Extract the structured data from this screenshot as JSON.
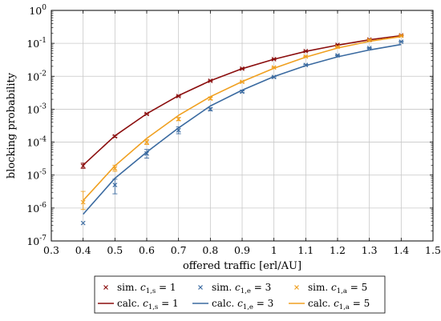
{
  "chart_data": {
    "type": "line",
    "xlabel": "offered traffic [erl/AU]",
    "ylabel": "blocking probability",
    "xlim": [
      0.3,
      1.5
    ],
    "ylim": [
      1e-07,
      1
    ],
    "y_scale": "log",
    "grid": true,
    "legend_placement": "bottom-center",
    "x_ticks": [
      "0.3",
      "0.4",
      "0.5",
      "0.6",
      "0.7",
      "0.8",
      "0.9",
      "1",
      "1.1",
      "1.2",
      "1.3",
      "1.4",
      "1.5"
    ],
    "y_ticks": [
      {
        "base": "10",
        "exp": "0",
        "value": 1
      },
      {
        "base": "10",
        "exp": "-1",
        "value": 0.1
      },
      {
        "base": "10",
        "exp": "-2",
        "value": 0.01
      },
      {
        "base": "10",
        "exp": "-3",
        "value": 0.001
      },
      {
        "base": "10",
        "exp": "-4",
        "value": 0.0001
      },
      {
        "base": "10",
        "exp": "-5",
        "value": 1e-05
      },
      {
        "base": "10",
        "exp": "-6",
        "value": 1e-06
      },
      {
        "base": "10",
        "exp": "-7",
        "value": 1e-07
      }
    ],
    "series": [
      {
        "kind": "simulation",
        "color": "#8b0e0e",
        "marker": "x",
        "legend": {
          "prefix": "sim.",
          "sym": "c",
          "sub": "1,s",
          "eq": "= 1"
        },
        "x": [
          0.4,
          0.5,
          0.6,
          0.7,
          0.8,
          0.9,
          1.0,
          1.1,
          1.2,
          1.3,
          1.4
        ],
        "y": [
          1.9e-05,
          0.00015,
          0.00072,
          0.0025,
          0.0073,
          0.017,
          0.033,
          0.058,
          0.09,
          0.13,
          0.175
        ],
        "err_low": [
          1.6e-05,
          0.00014,
          0.00069,
          0.0024,
          0.007,
          0.0165,
          0.032,
          0.056,
          0.088,
          0.127,
          0.17
        ],
        "err_high": [
          2.3e-05,
          0.00016,
          0.00075,
          0.0026,
          0.0076,
          0.0175,
          0.034,
          0.06,
          0.092,
          0.133,
          0.18
        ]
      },
      {
        "kind": "simulation",
        "color": "#3a6aa0",
        "marker": "x",
        "legend": {
          "prefix": "sim.",
          "sym": "c",
          "sub": "1,e",
          "eq": "= 3"
        },
        "x": [
          0.4,
          0.5,
          0.6,
          0.7,
          0.8,
          0.9,
          1.0,
          1.1,
          1.2,
          1.3,
          1.4
        ],
        "y": [
          3.5e-07,
          5e-06,
          4.5e-05,
          0.00023,
          0.001,
          0.0034,
          0.0095,
          0.022,
          0.043,
          0.072,
          0.112
        ],
        "err_low": [
          null,
          2.7e-06,
          3.3e-05,
          0.00018,
          0.0009,
          0.0032,
          0.0091,
          0.021,
          0.042,
          0.07,
          0.108
        ],
        "err_high": [
          null,
          7.5e-06,
          6e-05,
          0.00029,
          0.0011,
          0.0036,
          0.0099,
          0.023,
          0.044,
          0.074,
          0.116
        ]
      },
      {
        "kind": "simulation",
        "color": "#f0a020",
        "marker": "x",
        "legend": {
          "prefix": "sim.",
          "sym": "c",
          "sub": "1,a",
          "eq": "= 5"
        },
        "x": [
          0.4,
          0.5,
          0.6,
          0.7,
          0.8,
          0.9,
          1.0,
          1.1,
          1.2,
          1.3,
          1.4
        ],
        "y": [
          1.5e-06,
          1.6e-05,
          0.0001,
          0.0005,
          0.0021,
          0.0068,
          0.0185,
          0.04,
          0.078,
          0.125,
          0.17
        ],
        "err_low": [
          9e-07,
          1.3e-05,
          8.5e-05,
          0.00045,
          0.00195,
          0.0065,
          0.018,
          0.039,
          0.076,
          0.122,
          0.165
        ],
        "err_high": [
          3.2e-06,
          2e-05,
          0.00012,
          0.00056,
          0.0023,
          0.0071,
          0.019,
          0.041,
          0.08,
          0.128,
          0.175
        ]
      },
      {
        "kind": "calculation",
        "color": "#8b0e0e",
        "marker": "line",
        "legend": {
          "prefix": "calc.",
          "sym": "c",
          "sub": "1,s",
          "eq": "= 1"
        },
        "x": [
          0.4,
          0.5,
          0.6,
          0.7,
          0.8,
          0.9,
          1.0,
          1.1,
          1.2,
          1.3,
          1.4
        ],
        "y": [
          2e-05,
          0.000155,
          0.00073,
          0.0026,
          0.0073,
          0.017,
          0.033,
          0.057,
          0.088,
          0.128,
          0.172
        ]
      },
      {
        "kind": "calculation",
        "color": "#3a6aa0",
        "marker": "line",
        "legend": {
          "prefix": "calc.",
          "sym": "c",
          "sub": "1,e",
          "eq": "= 3"
        },
        "x": [
          0.4,
          0.5,
          0.6,
          0.7,
          0.8,
          0.9,
          1.0,
          1.1,
          1.2,
          1.3,
          1.4
        ],
        "y": [
          6.5e-07,
          8e-06,
          5e-05,
          0.00027,
          0.00125,
          0.0038,
          0.0098,
          0.021,
          0.039,
          0.063,
          0.092
        ]
      },
      {
        "kind": "calculation",
        "color": "#f0a020",
        "marker": "line",
        "legend": {
          "prefix": "calc.",
          "sym": "c",
          "sub": "1,a",
          "eq": "= 5"
        },
        "x": [
          0.4,
          0.5,
          0.6,
          0.7,
          0.8,
          0.9,
          1.0,
          1.1,
          1.2,
          1.3,
          1.4
        ],
        "y": [
          1.7e-06,
          1.9e-05,
          0.00013,
          0.00065,
          0.0024,
          0.0069,
          0.0175,
          0.038,
          0.072,
          0.115,
          0.16
        ]
      }
    ]
  }
}
